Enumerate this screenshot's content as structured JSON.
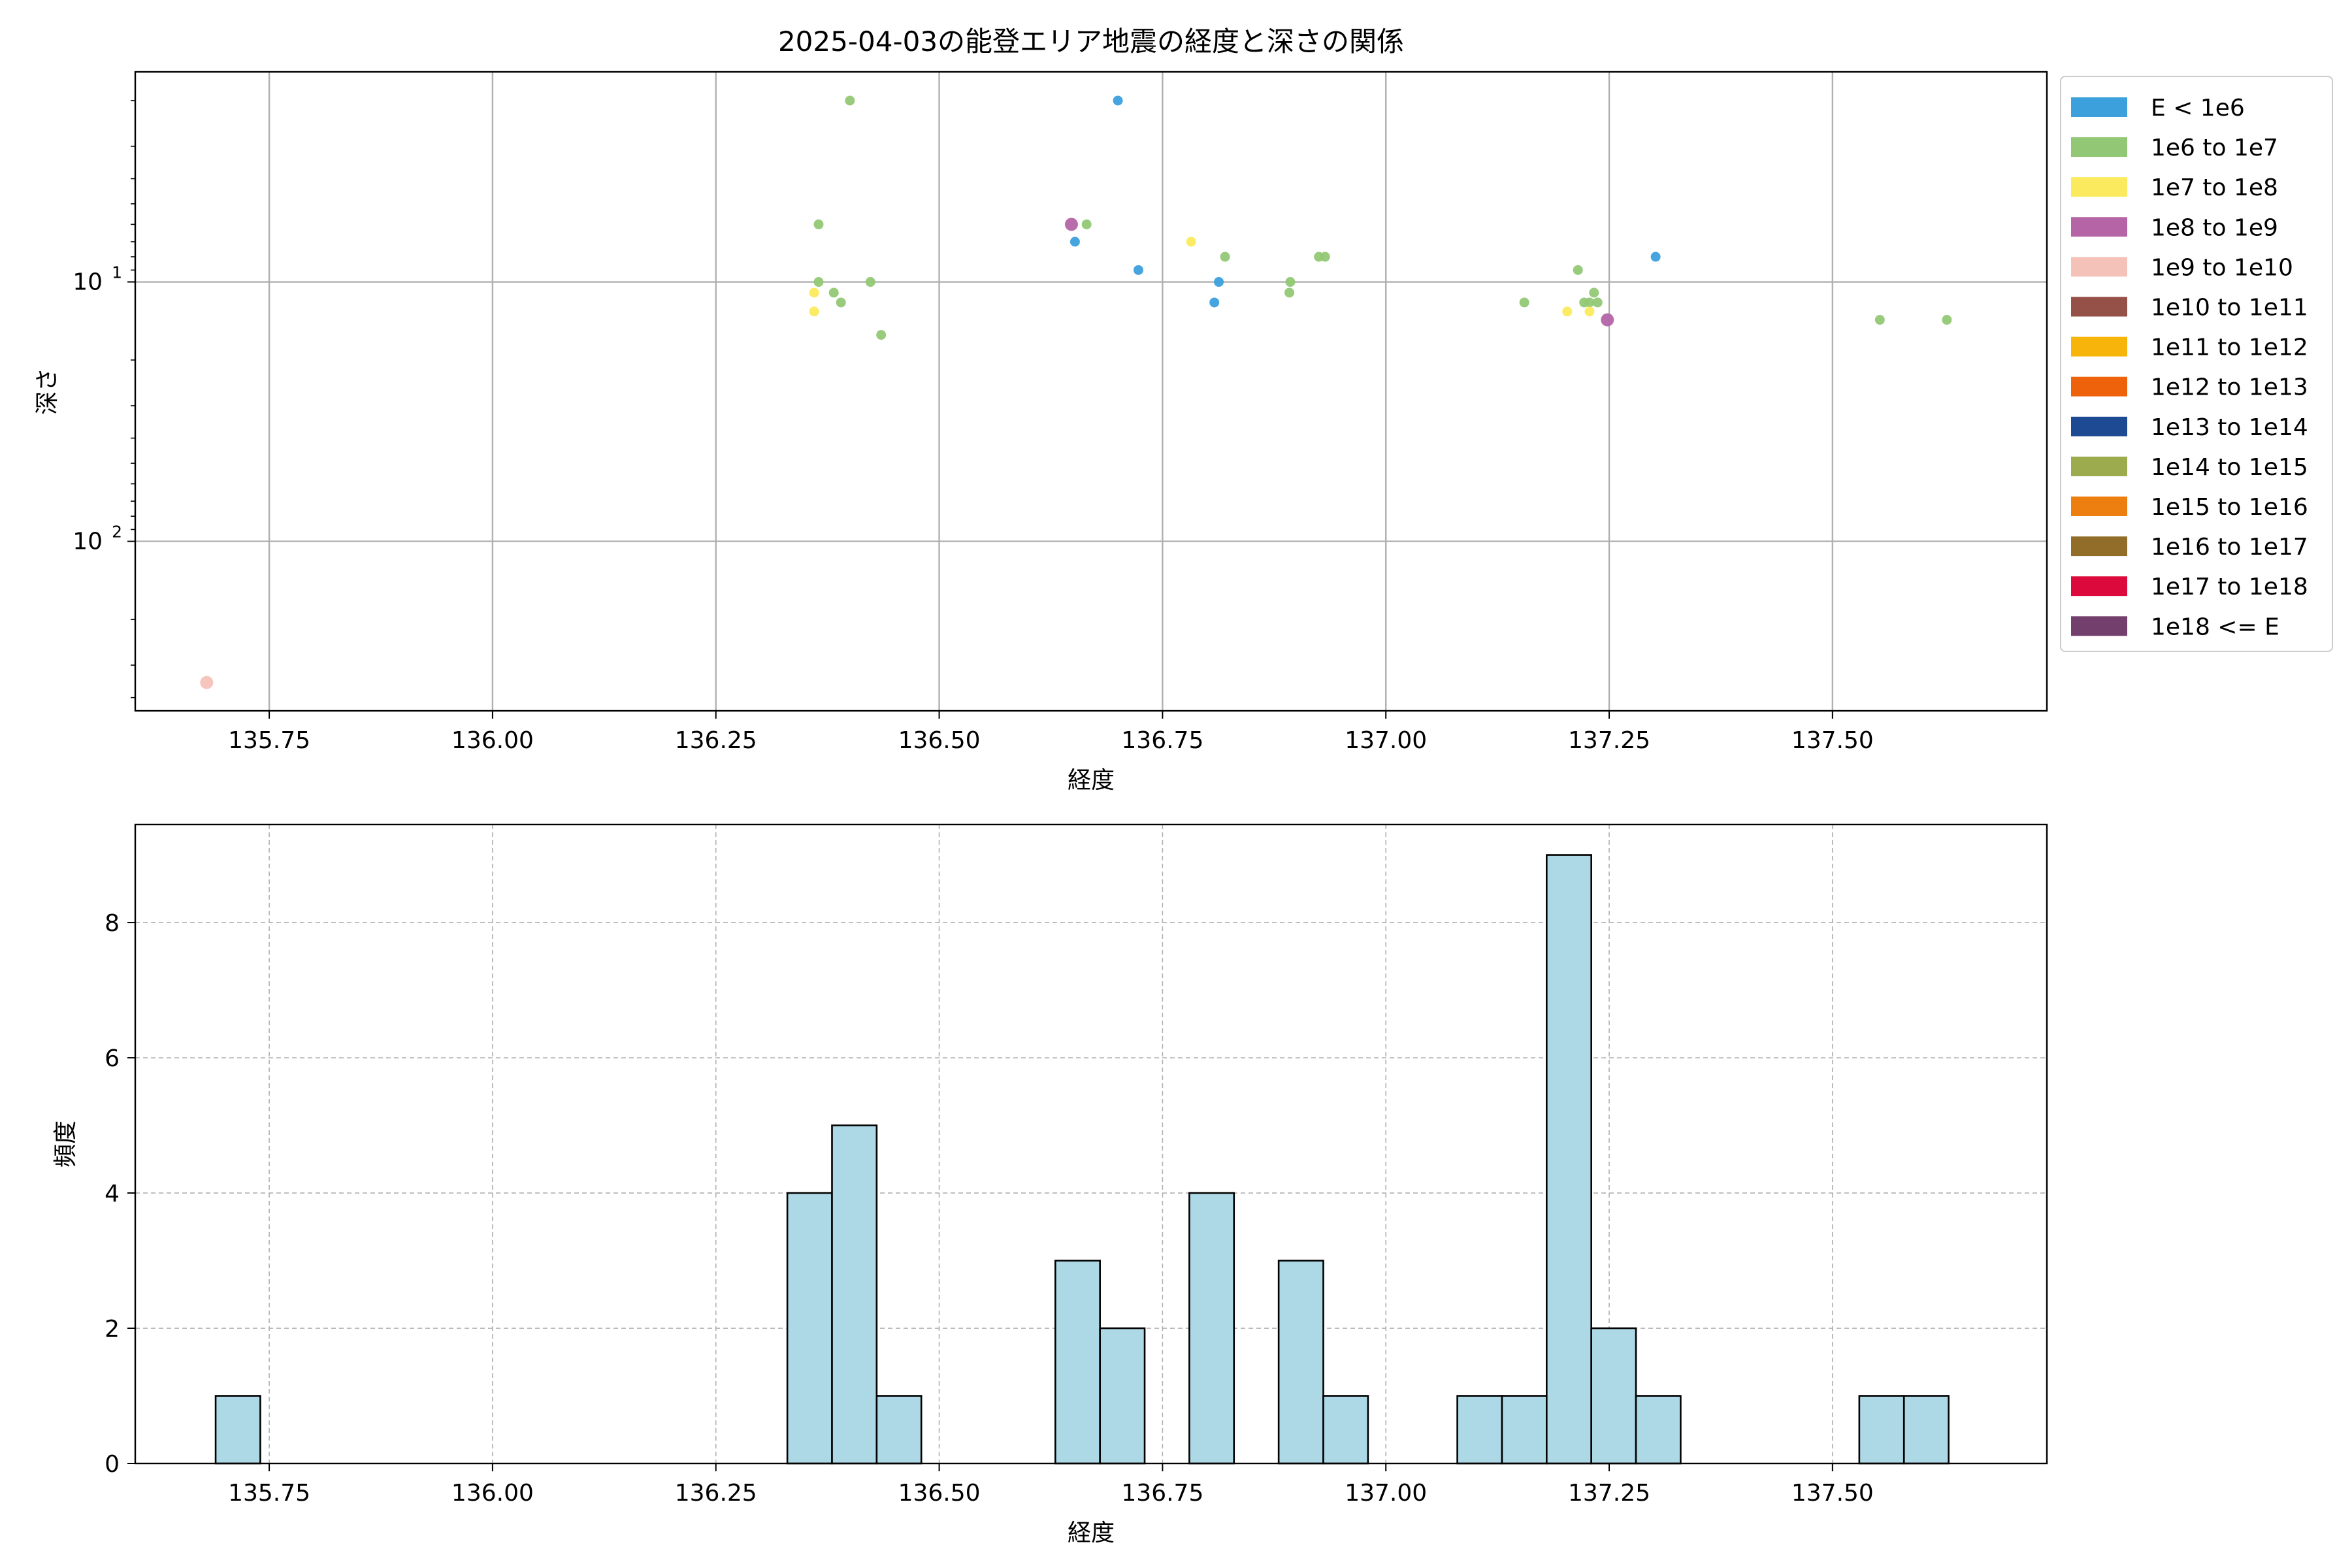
{
  "chart_data": [
    {
      "type": "scatter",
      "title": "2025-04-03の能登エリア地震の経度と深さの関係",
      "xlabel": "経度",
      "ylabel": "深さ",
      "xlim": [
        135.6,
        137.74
      ],
      "ylim": [
        450,
        1.55
      ],
      "yscale": "log",
      "y_inverted": true,
      "grid": true,
      "x_ticks": [
        "135.75",
        "136.00",
        "136.25",
        "136.50",
        "136.75",
        "137.00",
        "137.25",
        "137.50"
      ],
      "x_tick_values": [
        135.75,
        136.0,
        136.25,
        136.5,
        136.75,
        137.0,
        137.25,
        137.5
      ],
      "y_ticks": [
        {
          "value": 10,
          "base": "10",
          "exp": "1"
        },
        {
          "value": 100,
          "base": "10",
          "exp": "2"
        }
      ],
      "legend_placement": "outside-right",
      "legend": [
        {
          "label": "E < 1e6",
          "color": "#3ca0dc"
        },
        {
          "label": "1e6 to 1e7",
          "color": "#92c875"
        },
        {
          "label": "1e7 to 1e8",
          "color": "#fbea5d"
        },
        {
          "label": "1e8 to 1e9",
          "color": "#b564a6"
        },
        {
          "label": "1e9 to 1e10",
          "color": "#f5c2ba"
        },
        {
          "label": "1e10 to 1e11",
          "color": "#955147"
        },
        {
          "label": "1e11 to 1e12",
          "color": "#f7b50b"
        },
        {
          "label": "1e12 to 1e13",
          "color": "#ee620c"
        },
        {
          "label": "1e13 to 1e14",
          "color": "#1e4a93"
        },
        {
          "label": "1e14 to 1e15",
          "color": "#9bab4d"
        },
        {
          "label": "1e15 to 1e16",
          "color": "#ed7f10"
        },
        {
          "label": "1e16 to 1e17",
          "color": "#926d2a"
        },
        {
          "label": "1e17 to 1e18",
          "color": "#dc0a3c"
        },
        {
          "label": "1e18 <= E",
          "color": "#733f6c"
        }
      ],
      "points": [
        {
          "x": 135.68,
          "y": 350,
          "cat": 4
        },
        {
          "x": 136.4,
          "y": 2,
          "cat": 1
        },
        {
          "x": 136.365,
          "y": 6,
          "cat": 1
        },
        {
          "x": 136.365,
          "y": 10,
          "cat": 1
        },
        {
          "x": 136.382,
          "y": 11,
          "cat": 1
        },
        {
          "x": 136.39,
          "y": 12,
          "cat": 1
        },
        {
          "x": 136.423,
          "y": 10,
          "cat": 1
        },
        {
          "x": 136.435,
          "y": 16,
          "cat": 1
        },
        {
          "x": 136.36,
          "y": 11,
          "cat": 2
        },
        {
          "x": 136.36,
          "y": 13,
          "cat": 2
        },
        {
          "x": 136.7,
          "y": 2,
          "cat": 0
        },
        {
          "x": 136.648,
          "y": 6,
          "cat": 3
        },
        {
          "x": 136.665,
          "y": 6,
          "cat": 1
        },
        {
          "x": 136.652,
          "y": 7,
          "cat": 0
        },
        {
          "x": 136.723,
          "y": 9,
          "cat": 0
        },
        {
          "x": 136.782,
          "y": 7,
          "cat": 2
        },
        {
          "x": 136.82,
          "y": 8,
          "cat": 1
        },
        {
          "x": 136.813,
          "y": 10,
          "cat": 0
        },
        {
          "x": 136.808,
          "y": 12,
          "cat": 0
        },
        {
          "x": 136.893,
          "y": 10,
          "cat": 1
        },
        {
          "x": 136.892,
          "y": 11,
          "cat": 1
        },
        {
          "x": 136.925,
          "y": 8,
          "cat": 1
        },
        {
          "x": 136.932,
          "y": 8,
          "cat": 1
        },
        {
          "x": 137.155,
          "y": 12,
          "cat": 1
        },
        {
          "x": 137.215,
          "y": 9,
          "cat": 1
        },
        {
          "x": 137.233,
          "y": 11,
          "cat": 1
        },
        {
          "x": 137.222,
          "y": 12,
          "cat": 1
        },
        {
          "x": 137.228,
          "y": 12,
          "cat": 1
        },
        {
          "x": 137.237,
          "y": 12,
          "cat": 1
        },
        {
          "x": 137.203,
          "y": 13,
          "cat": 2
        },
        {
          "x": 137.228,
          "y": 13,
          "cat": 2
        },
        {
          "x": 137.248,
          "y": 14,
          "cat": 3
        },
        {
          "x": 137.302,
          "y": 8,
          "cat": 0
        },
        {
          "x": 137.553,
          "y": 14,
          "cat": 1
        },
        {
          "x": 137.628,
          "y": 14,
          "cat": 1
        }
      ]
    },
    {
      "type": "bar",
      "title": "",
      "xlabel": "経度",
      "ylabel": "頻度",
      "xlim": [
        135.6,
        137.74
      ],
      "ylim": [
        0,
        9.45
      ],
      "grid": true,
      "grid_style": "dashed",
      "bar_color": "#add8e6",
      "x_ticks": [
        "135.75",
        "136.00",
        "136.25",
        "136.50",
        "136.75",
        "137.00",
        "137.25",
        "137.50"
      ],
      "x_tick_values": [
        135.75,
        136.0,
        136.25,
        136.5,
        136.75,
        137.0,
        137.25,
        137.5
      ],
      "y_ticks": [
        "0",
        "2",
        "4",
        "6",
        "8"
      ],
      "y_tick_values": [
        0,
        2,
        4,
        6,
        8
      ],
      "bins": [
        {
          "x0": 135.69,
          "x1": 135.74,
          "value": 1
        },
        {
          "x0": 136.33,
          "x1": 136.38,
          "value": 4
        },
        {
          "x0": 136.38,
          "x1": 136.43,
          "value": 5
        },
        {
          "x0": 136.43,
          "x1": 136.48,
          "value": 1
        },
        {
          "x0": 136.63,
          "x1": 136.68,
          "value": 3
        },
        {
          "x0": 136.68,
          "x1": 136.73,
          "value": 2
        },
        {
          "x0": 136.78,
          "x1": 136.83,
          "value": 4
        },
        {
          "x0": 136.88,
          "x1": 136.93,
          "value": 3
        },
        {
          "x0": 136.93,
          "x1": 136.98,
          "value": 1
        },
        {
          "x0": 137.08,
          "x1": 137.13,
          "value": 1
        },
        {
          "x0": 137.13,
          "x1": 137.18,
          "value": 1
        },
        {
          "x0": 137.18,
          "x1": 137.23,
          "value": 9
        },
        {
          "x0": 137.23,
          "x1": 137.28,
          "value": 2
        },
        {
          "x0": 137.28,
          "x1": 137.33,
          "value": 1
        },
        {
          "x0": 137.53,
          "x1": 137.58,
          "value": 1
        },
        {
          "x0": 137.58,
          "x1": 137.63,
          "value": 1
        }
      ]
    }
  ]
}
